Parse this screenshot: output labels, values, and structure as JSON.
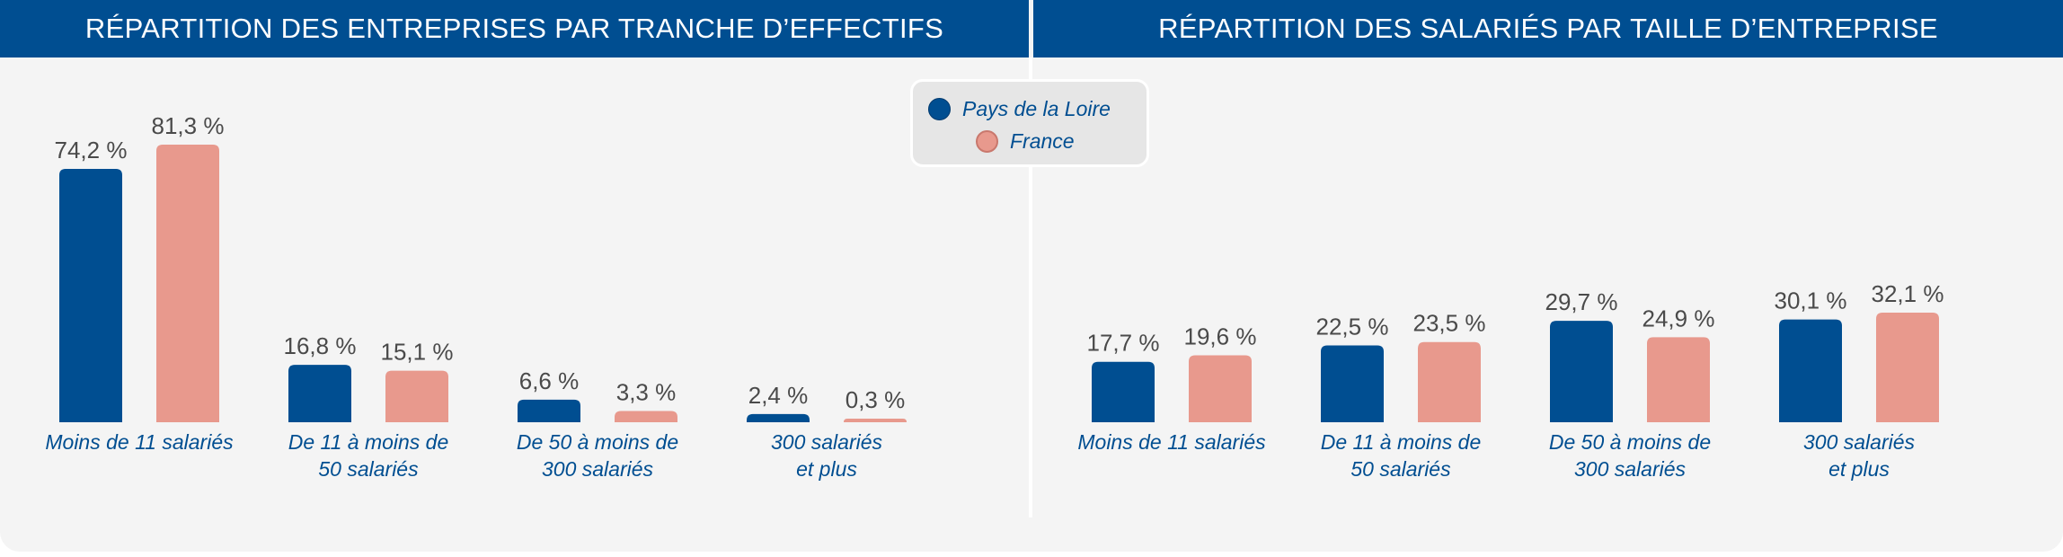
{
  "colors": {
    "header_bg": "#004e91",
    "panel_bg": "#f4f4f4",
    "pays_de_la_loire": "#004e91",
    "france": "#e8998d",
    "value_label": "#4a4a4a",
    "category_label": "#004e91"
  },
  "legend": {
    "items": [
      {
        "label": "Pays de la Loire",
        "color": "#004e91"
      },
      {
        "label": "France",
        "color": "#e8998d"
      }
    ]
  },
  "chart_data": [
    {
      "type": "bar",
      "title": "RÉPARTITION DES ENTREPRISES PAR TRANCHE D’EFFECTIFS",
      "categories": [
        [
          "Moins de 11 salariés"
        ],
        [
          "De 11 à moins de",
          "50 salariés"
        ],
        [
          "De 50 à moins de",
          "300 salariés"
        ],
        [
          "300 salariés",
          "et plus"
        ]
      ],
      "series": [
        {
          "name": "Pays de la Loire",
          "values": [
            74.2,
            16.8,
            6.6,
            2.4
          ],
          "labels": [
            "74,2 %",
            "16,8 %",
            "6,6 %",
            "2,4 %"
          ]
        },
        {
          "name": "France",
          "values": [
            81.3,
            15.1,
            3.3,
            0.3
          ],
          "labels": [
            "81,3 %",
            "15,1 %",
            "3,3 %",
            "0,3 %"
          ]
        }
      ],
      "ylim": [
        0,
        100
      ]
    },
    {
      "type": "bar",
      "title": "RÉPARTITION DES SALARIÉS PAR TAILLE D’ENTREPRISE",
      "categories": [
        [
          "Moins de 11 salariés"
        ],
        [
          "De 11 à moins de",
          "50 salariés"
        ],
        [
          "De 50 à moins de",
          "300 salariés"
        ],
        [
          "300 salariés",
          "et plus"
        ]
      ],
      "series": [
        {
          "name": "Pays de la Loire",
          "values": [
            17.7,
            22.5,
            29.7,
            30.1
          ],
          "labels": [
            "17,7 %",
            "22,5 %",
            "29,7 %",
            "30,1 %"
          ]
        },
        {
          "name": "France",
          "values": [
            19.6,
            23.5,
            24.9,
            32.1
          ],
          "labels": [
            "19,6 %",
            "23,5 %",
            "24,9 %",
            "32,1 %"
          ]
        }
      ],
      "ylim": [
        0,
        100
      ]
    }
  ]
}
